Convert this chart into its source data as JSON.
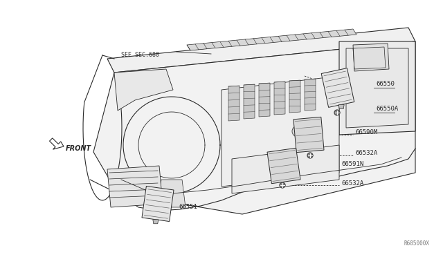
{
  "background_color": "#ffffff",
  "line_color": "#2a2a2a",
  "fig_width": 6.4,
  "fig_height": 3.72,
  "dpi": 100,
  "watermark": "R685000X",
  "labels": {
    "see_sec": "SEE SEC.680",
    "front": "FRONT",
    "p66550": "66550",
    "p66550A": "66550A",
    "p66590M": "66590M",
    "p66532A_top": "66532A",
    "p66591N": "66591N",
    "p66532A_bot": "66532A",
    "p66551": "66551"
  }
}
